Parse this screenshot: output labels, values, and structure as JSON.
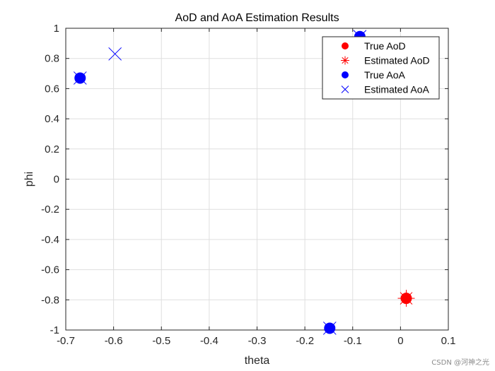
{
  "chart_data": {
    "type": "scatter",
    "title": "AoD and AoA Estimation Results",
    "xlabel": "theta",
    "ylabel": "phi",
    "xlim": [
      -0.7,
      0.1
    ],
    "ylim": [
      -1,
      1
    ],
    "xticks": [
      -0.7,
      -0.6,
      -0.5,
      -0.4,
      -0.3,
      -0.2,
      -0.1,
      0,
      0.1
    ],
    "xtick_labels": [
      "-0.7",
      "-0.6",
      "-0.5",
      "-0.4",
      "-0.3",
      "-0.2",
      "-0.1",
      "0",
      "0.1"
    ],
    "yticks": [
      -1,
      -0.8,
      -0.6,
      -0.4,
      -0.2,
      0,
      0.2,
      0.4,
      0.6,
      0.8,
      1
    ],
    "ytick_labels": [
      "-1",
      "-0.8",
      "-0.6",
      "-0.4",
      "-0.2",
      "0",
      "0.2",
      "0.4",
      "0.6",
      "0.8",
      "1"
    ],
    "grid": true,
    "legend_position": "top-right",
    "series": [
      {
        "name": "True AoD",
        "marker": "filled-circle",
        "color": "#ff0000",
        "points": [
          [
            0.012,
            -0.79
          ]
        ]
      },
      {
        "name": "Estimated AoD",
        "marker": "asterisk",
        "color": "#ff0000",
        "points": [
          [
            0.012,
            -0.79
          ]
        ]
      },
      {
        "name": "True AoA",
        "marker": "filled-circle",
        "color": "#0000ff",
        "points": [
          [
            -0.67,
            0.67
          ],
          [
            -0.085,
            0.945
          ],
          [
            -0.148,
            -0.988
          ]
        ]
      },
      {
        "name": "Estimated AoA",
        "marker": "cross",
        "color": "#0000ff",
        "points": [
          [
            -0.67,
            0.67
          ],
          [
            -0.597,
            0.83
          ],
          [
            -0.148,
            -0.988
          ],
          [
            -0.085,
            0.945
          ]
        ]
      }
    ]
  },
  "watermark": "CSDN @河神之光"
}
